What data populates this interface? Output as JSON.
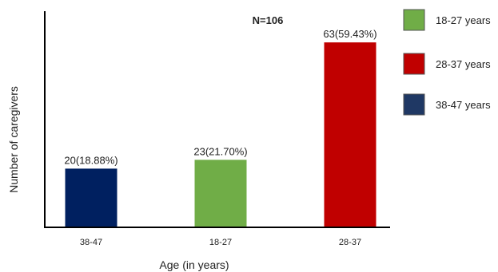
{
  "chart_data": {
    "type": "bar",
    "annotation": "N=106",
    "xlabel": "Age (in years)",
    "ylabel": "Number of caregivers",
    "categories": [
      "38-47",
      "18-27",
      "28-37"
    ],
    "values": [
      20,
      23,
      63
    ],
    "data_labels": [
      "20(18.88%)",
      "23(21.70%)",
      "63(59.43%)"
    ],
    "colors": [
      "#002060",
      "#70AD47",
      "#C00000"
    ],
    "ylim": [
      0,
      70
    ],
    "grid": false,
    "legend": {
      "position": "right",
      "entries": [
        {
          "label": "18-27 years",
          "color": "#70AD47"
        },
        {
          "label": "28-37 years",
          "color": "#C00000"
        },
        {
          "label": "38-47 years",
          "color": "#1F3864"
        }
      ]
    }
  }
}
